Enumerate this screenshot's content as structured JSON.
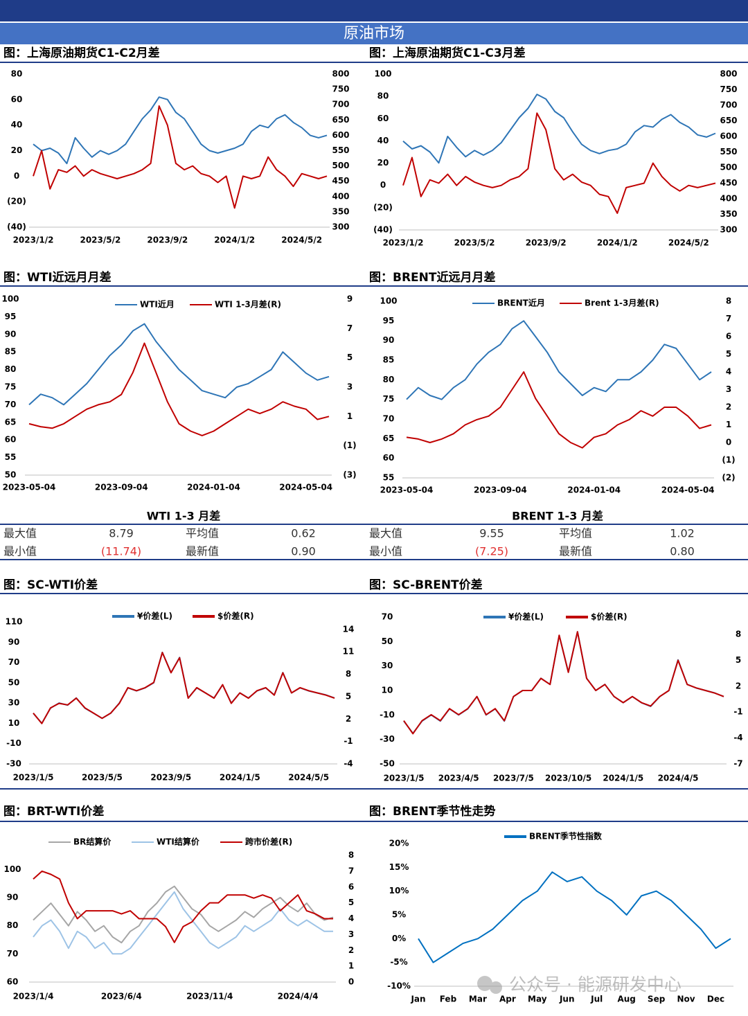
{
  "header": {
    "title": "原油市场"
  },
  "watermark": "公众号 · 能源研发中心",
  "stats": [
    {
      "title": "WTI 1-3 月差",
      "rows": [
        [
          "最大值",
          "8.79",
          "平均值",
          "0.62"
        ],
        [
          "最小值",
          "(11.74)",
          "最新值",
          "0.90"
        ]
      ]
    },
    {
      "title": "BRENT 1-3 月差",
      "rows": [
        [
          "最大值",
          "9.55",
          "平均值",
          "1.02"
        ],
        [
          "最小值",
          "(7.25)",
          "最新值",
          "0.80"
        ]
      ]
    }
  ],
  "chart_data": [
    {
      "type": "line",
      "title": "图：上海原油期货C1-C2月差",
      "categories": [
        "2023/1/2",
        null,
        null,
        null,
        null,
        null,
        null,
        null,
        "2023/5/2",
        null,
        null,
        null,
        null,
        null,
        null,
        null,
        "2023/9/2",
        null,
        null,
        null,
        null,
        null,
        null,
        null,
        "2024/1/2",
        null,
        null,
        null,
        null,
        null,
        null,
        null,
        "2024/5/2",
        null,
        null,
        null
      ],
      "ylim": [
        -40,
        80
      ],
      "yticks": [
        80,
        60,
        40,
        20,
        0,
        {
          "value": -20,
          "label": "(20)"
        },
        {
          "value": -40,
          "label": "(40)"
        }
      ],
      "y2lim": [
        300,
        800
      ],
      "y2ticks": [
        800,
        750,
        700,
        650,
        600,
        550,
        500,
        450,
        400,
        350,
        300
      ],
      "negative_tick_color": "#ff0000",
      "series": [
        {
          "color": "#2e75b6",
          "axis": "y2",
          "values": [
            571,
            550,
            558,
            542,
            508,
            592,
            558,
            529,
            550,
            538,
            550,
            571,
            613,
            654,
            683,
            725,
            717,
            675,
            654,
            613,
            571,
            550,
            542,
            550,
            558,
            571,
            613,
            633,
            625,
            654,
            667,
            642,
            625,
            600,
            592,
            600
          ]
        },
        {
          "color": "#c00000",
          "values": [
            0,
            20,
            -10,
            5,
            3,
            8,
            0,
            5,
            2,
            0,
            -2,
            0,
            2,
            5,
            10,
            55,
            40,
            10,
            5,
            8,
            2,
            0,
            -5,
            0,
            -25,
            0,
            -2,
            0,
            15,
            5,
            0,
            -8,
            2,
            0,
            -2,
            0
          ]
        }
      ]
    },
    {
      "type": "line",
      "title": "图：上海原油期货C1-C3月差",
      "categories": [
        "2023/1/2",
        null,
        null,
        null,
        null,
        null,
        null,
        null,
        "2023/5/2",
        null,
        null,
        null,
        null,
        null,
        null,
        null,
        "2023/9/2",
        null,
        null,
        null,
        null,
        null,
        null,
        null,
        "2024/1/2",
        null,
        null,
        null,
        null,
        null,
        null,
        null,
        "2024/5/2",
        null,
        null,
        null
      ],
      "ylim": [
        -40,
        100
      ],
      "yticks": [
        100,
        80,
        60,
        40,
        20,
        0,
        {
          "value": -20,
          "label": "(20)"
        },
        {
          "value": -40,
          "label": "(40)"
        }
      ],
      "y2lim": [
        300,
        800
      ],
      "y2ticks": [
        800,
        750,
        700,
        650,
        600,
        550,
        500,
        450,
        400,
        350,
        300
      ],
      "negative_tick_color": "#ff0000",
      "series": [
        {
          "color": "#2e75b6",
          "axis": "y2",
          "values": [
            585,
            560,
            570,
            550,
            515,
            600,
            565,
            535,
            555,
            540,
            555,
            580,
            620,
            660,
            690,
            735,
            720,
            680,
            660,
            615,
            575,
            555,
            545,
            555,
            560,
            575,
            615,
            635,
            630,
            655,
            670,
            645,
            630,
            605,
            598,
            610
          ]
        },
        {
          "color": "#c00000",
          "values": [
            0,
            25,
            -10,
            5,
            2,
            10,
            0,
            8,
            3,
            0,
            -2,
            0,
            5,
            8,
            15,
            65,
            50,
            15,
            5,
            10,
            3,
            0,
            -8,
            -10,
            -25,
            -2,
            0,
            2,
            20,
            8,
            0,
            -5,
            0,
            -2,
            0,
            2
          ]
        }
      ]
    },
    {
      "type": "line",
      "title": "图：WTI近远月月差",
      "categories": [
        "2023-05-04",
        null,
        null,
        null,
        null,
        null,
        null,
        null,
        "2023-09-04",
        null,
        null,
        null,
        null,
        null,
        null,
        null,
        "2024-01-04",
        null,
        null,
        null,
        null,
        null,
        null,
        null,
        "2024-05-04",
        null,
        null
      ],
      "ylim": [
        50,
        100
      ],
      "yticks": [
        100,
        95,
        90,
        85,
        80,
        75,
        70,
        65,
        60,
        55,
        50
      ],
      "y2lim": [
        -3,
        9
      ],
      "y2ticks": [
        9,
        7,
        5,
        3,
        1,
        {
          "value": -1,
          "label": "(1)"
        },
        {
          "value": -3,
          "label": "(3)"
        }
      ],
      "negative_tick_color": "#ff0000",
      "series": [
        {
          "name": "WTI近月",
          "color": "#2e75b6",
          "values": [
            70,
            73,
            72,
            70,
            73,
            76,
            80,
            84,
            87,
            91,
            93,
            88,
            84,
            80,
            77,
            74,
            73,
            72,
            75,
            76,
            78,
            80,
            85,
            82,
            79,
            77,
            78
          ]
        },
        {
          "name": "WTI 1-3月差(R)",
          "color": "#c00000",
          "axis": "y2",
          "values": [
            0.5,
            0.3,
            0.2,
            0.5,
            1,
            1.5,
            1.8,
            2,
            2.5,
            4,
            6,
            4,
            2,
            0.5,
            0,
            -0.3,
            0,
            0.5,
            1,
            1.5,
            1.2,
            1.5,
            2,
            1.7,
            1.5,
            0.8,
            1
          ]
        }
      ]
    },
    {
      "type": "line",
      "title": "图：BRENT近远月月差",
      "categories": [
        "2023-05-04",
        null,
        null,
        null,
        null,
        null,
        null,
        null,
        "2023-09-04",
        null,
        null,
        null,
        null,
        null,
        null,
        null,
        "2024-01-04",
        null,
        null,
        null,
        null,
        null,
        null,
        null,
        "2024-05-04",
        null,
        null
      ],
      "ylim": [
        55,
        100
      ],
      "yticks": [
        100,
        95,
        90,
        85,
        80,
        75,
        70,
        65,
        60,
        55
      ],
      "y2lim": [
        -2,
        8
      ],
      "y2ticks": [
        8,
        7,
        6,
        5,
        4,
        3,
        2,
        1,
        0,
        {
          "value": -1,
          "label": "(1)"
        },
        {
          "value": -2,
          "label": "(2)"
        }
      ],
      "negative_tick_color": "#ff0000",
      "series": [
        {
          "name": "BRENT近月",
          "color": "#2e75b6",
          "values": [
            75,
            78,
            76,
            75,
            78,
            80,
            84,
            87,
            89,
            93,
            95,
            91,
            87,
            82,
            79,
            76,
            78,
            77,
            80,
            80,
            82,
            85,
            89,
            88,
            84,
            80,
            82
          ]
        },
        {
          "name": "Brent 1-3月差(R)",
          "color": "#c00000",
          "axis": "y2",
          "values": [
            0.3,
            0.2,
            0,
            0.2,
            0.5,
            1,
            1.3,
            1.5,
            2,
            3,
            4,
            2.5,
            1.5,
            0.5,
            0,
            -0.3,
            0.3,
            0.5,
            1,
            1.3,
            1.8,
            1.5,
            2,
            2,
            1.5,
            0.8,
            1
          ]
        }
      ]
    },
    {
      "type": "line",
      "title": "图：SC-WTI价差",
      "categories": [
        "2023/1/5",
        null,
        null,
        null,
        null,
        null,
        null,
        null,
        "2023/5/5",
        null,
        null,
        null,
        null,
        null,
        null,
        null,
        "2023/9/5",
        null,
        null,
        null,
        null,
        null,
        null,
        null,
        "2024/1/5",
        null,
        null,
        null,
        null,
        null,
        null,
        null,
        "2024/5/5",
        null,
        null,
        null
      ],
      "ylim": [
        -30,
        110
      ],
      "yticks": [
        110,
        90,
        70,
        50,
        30,
        10,
        -10,
        -30
      ],
      "y2lim": [
        -4,
        15
      ],
      "y2ticks": [
        14,
        11,
        8,
        5,
        2,
        -1,
        -4
      ],
      "series": [
        {
          "name": "¥价差(L)",
          "color": "#2e75b6",
          "values": [
            20,
            10,
            25,
            30,
            28,
            35,
            25,
            20,
            15,
            20,
            30,
            45,
            42,
            45,
            50,
            80,
            60,
            75,
            35,
            45,
            40,
            35,
            48,
            30,
            40,
            35,
            42,
            45,
            38,
            60,
            40,
            45,
            42,
            40,
            38,
            35
          ]
        },
        {
          "name": "$价差(R)",
          "color": "#c00000",
          "axis": "y2",
          "values": [
            2.8,
            1.4,
            3.5,
            4.1,
            3.9,
            4.8,
            3.5,
            2.8,
            2.1,
            2.8,
            4.1,
            6.2,
            5.8,
            6.2,
            6.9,
            10.9,
            8.2,
            10.2,
            4.8,
            6.2,
            5.5,
            4.8,
            6.6,
            4.1,
            5.5,
            4.8,
            5.8,
            6.2,
            5.2,
            8.2,
            5.5,
            6.2,
            5.8,
            5.5,
            5.2,
            4.8
          ]
        }
      ]
    },
    {
      "type": "line",
      "title": "图：SC-BRENT价差",
      "categories": [
        "2023/1/5",
        null,
        null,
        null,
        null,
        null,
        "2023/4/5",
        null,
        null,
        null,
        null,
        null,
        "2023/7/5",
        null,
        null,
        null,
        null,
        null,
        "2023/10/5",
        null,
        null,
        null,
        null,
        null,
        "2024/1/5",
        null,
        null,
        null,
        null,
        null,
        "2024/4/5",
        null,
        null,
        null,
        null,
        null
      ],
      "ylim": [
        -50,
        70
      ],
      "yticks": [
        70,
        50,
        30,
        10,
        -10,
        -30,
        -50
      ],
      "y2lim": [
        -7,
        10
      ],
      "y2ticks": [
        8,
        5,
        2,
        -1,
        -4,
        -7
      ],
      "series": [
        {
          "name": "¥价差(L)",
          "color": "#2e75b6",
          "values": [
            -15,
            -25,
            -15,
            -10,
            -15,
            -5,
            -10,
            -5,
            5,
            -10,
            -5,
            -15,
            5,
            10,
            10,
            20,
            15,
            55,
            25,
            58,
            20,
            10,
            15,
            5,
            0,
            5,
            0,
            -3,
            5,
            10,
            35,
            15,
            12,
            10,
            8,
            5
          ]
        },
        {
          "name": "$价差(R)",
          "color": "#c00000",
          "axis": "y2",
          "values": [
            -2,
            -3.5,
            -2,
            -1.3,
            -2,
            -0.6,
            -1.3,
            -0.6,
            0.8,
            -1.3,
            -0.6,
            -2,
            0.8,
            1.5,
            1.5,
            2.9,
            2.2,
            7.9,
            3.6,
            8.3,
            2.9,
            1.5,
            2.2,
            0.8,
            0.1,
            0.8,
            0.1,
            -0.3,
            0.8,
            1.5,
            5,
            2.2,
            1.8,
            1.5,
            1.2,
            0.8
          ]
        }
      ]
    },
    {
      "type": "line",
      "title": "图：BRT-WTI价差",
      "categories": [
        "2023/1/4",
        null,
        null,
        null,
        null,
        null,
        null,
        null,
        null,
        null,
        "2023/6/4",
        null,
        null,
        null,
        null,
        null,
        null,
        null,
        null,
        null,
        "2023/11/4",
        null,
        null,
        null,
        null,
        null,
        null,
        null,
        null,
        null,
        "2024/4/4",
        null,
        null,
        null,
        null
      ],
      "ylim": [
        60,
        105
      ],
      "yticks": [
        60,
        70,
        80,
        90,
        100
      ],
      "y2lim": [
        0,
        8
      ],
      "y2ticks": [
        8,
        7,
        6,
        5,
        4,
        3,
        2,
        1,
        0
      ],
      "series": [
        {
          "name": "BR结算价",
          "color": "#a6a6a6",
          "values": [
            82,
            85,
            88,
            84,
            80,
            85,
            82,
            78,
            80,
            76,
            74,
            78,
            80,
            85,
            88,
            92,
            94,
            90,
            86,
            84,
            80,
            78,
            80,
            82,
            85,
            83,
            86,
            88,
            90,
            87,
            85,
            88,
            84,
            82,
            83
          ]
        },
        {
          "name": "WTI结算价",
          "color": "#9dc3e6",
          "values": [
            76,
            80,
            82,
            78,
            72,
            78,
            76,
            72,
            74,
            70,
            70,
            72,
            76,
            80,
            84,
            88,
            92,
            86,
            82,
            78,
            74,
            72,
            74,
            76,
            80,
            78,
            80,
            82,
            86,
            82,
            80,
            82,
            80,
            78,
            78
          ]
        },
        {
          "name": "跨市价差(R)",
          "color": "#c00000",
          "axis": "y2",
          "values": [
            6.5,
            7,
            6.8,
            6.5,
            5,
            4,
            4.5,
            4.5,
            4.5,
            4.5,
            4.3,
            4.5,
            4,
            4,
            4,
            3.5,
            2.5,
            3.5,
            3.8,
            4.5,
            5,
            5,
            5.5,
            5.5,
            5.5,
            5.3,
            5.5,
            5.3,
            4.5,
            5,
            5.5,
            4.5,
            4.3,
            4,
            4
          ]
        }
      ]
    },
    {
      "type": "line",
      "title": "图：BRENT季节性走势",
      "categories": [
        "Jan",
        null,
        "Feb",
        null,
        "Mar",
        null,
        "Apr",
        null,
        "May",
        null,
        "Jun",
        null,
        "Jul",
        null,
        "Aug",
        null,
        "Sep",
        null,
        "Nov",
        null,
        "Dec",
        null
      ],
      "ylim": [
        -10,
        20
      ],
      "yticks": [
        {
          "value": 20,
          "label": "20%"
        },
        {
          "value": 15,
          "label": "15%"
        },
        {
          "value": 10,
          "label": "10%"
        },
        {
          "value": 5,
          "label": "5%"
        },
        {
          "value": 0,
          "label": "0%"
        },
        {
          "value": -5,
          "label": "-5%"
        },
        {
          "value": -10,
          "label": "-10%"
        }
      ],
      "series": [
        {
          "name": "BRENT季节性指数",
          "color": "#0070c0",
          "values": [
            0,
            -5,
            -3,
            -1,
            0,
            2,
            5,
            8,
            10,
            14,
            12,
            13,
            10,
            8,
            5,
            9,
            10,
            8,
            5,
            2,
            -2,
            0
          ]
        }
      ]
    }
  ]
}
